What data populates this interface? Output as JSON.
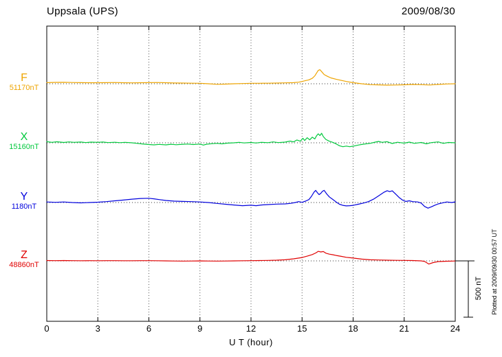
{
  "footer": {
    "plotted_at": "Plotted at 2009/09/30 00:57 UT"
  },
  "chart_data": {
    "type": "line",
    "title": "Uppsala (UPS)",
    "date": "2009/08/30",
    "xlabel": "U T (hour)",
    "x_range": [
      0,
      24
    ],
    "x_ticks": [
      0,
      3,
      6,
      9,
      12,
      15,
      18,
      21,
      24
    ],
    "y_unit": "nT",
    "points_note": "points are [UT hour, deviation in nT from base value]",
    "scale_bar": {
      "label": "500 nT",
      "nT": 500
    },
    "series": [
      {
        "name": "F",
        "base_value": "51170nT",
        "base_nT": 51170,
        "color": "#eea400",
        "points": [
          [
            0,
            10
          ],
          [
            0.5,
            12
          ],
          [
            1,
            13
          ],
          [
            1.5,
            11
          ],
          [
            2,
            10
          ],
          [
            2.5,
            9
          ],
          [
            3,
            9
          ],
          [
            3.5,
            10
          ],
          [
            4,
            11
          ],
          [
            4.5,
            9
          ],
          [
            5,
            8
          ],
          [
            5.5,
            9
          ],
          [
            6,
            10
          ],
          [
            6.5,
            11
          ],
          [
            7,
            9
          ],
          [
            7.5,
            7
          ],
          [
            8,
            6
          ],
          [
            8.5,
            5
          ],
          [
            9,
            4
          ],
          [
            9.5,
            0
          ],
          [
            10,
            -5
          ],
          [
            10.5,
            -3
          ],
          [
            11,
            0
          ],
          [
            11.5,
            2
          ],
          [
            12,
            4
          ],
          [
            12.5,
            4
          ],
          [
            13,
            5
          ],
          [
            13.5,
            6
          ],
          [
            14,
            8
          ],
          [
            14.5,
            10
          ],
          [
            14.8,
            14
          ],
          [
            15,
            20
          ],
          [
            15.2,
            28
          ],
          [
            15.4,
            35
          ],
          [
            15.6,
            48
          ],
          [
            15.75,
            70
          ],
          [
            15.85,
            95
          ],
          [
            15.95,
            118
          ],
          [
            16.05,
            125
          ],
          [
            16.15,
            108
          ],
          [
            16.3,
            82
          ],
          [
            16.5,
            65
          ],
          [
            16.7,
            52
          ],
          [
            17,
            40
          ],
          [
            17.3,
            30
          ],
          [
            17.6,
            20
          ],
          [
            18,
            10
          ],
          [
            18.5,
            0
          ],
          [
            19,
            -8
          ],
          [
            19.5,
            -10
          ],
          [
            20,
            -12
          ],
          [
            20.5,
            -11
          ],
          [
            21,
            -9
          ],
          [
            21.5,
            -6
          ],
          [
            22,
            -8
          ],
          [
            22.5,
            -11
          ],
          [
            23,
            -6
          ],
          [
            23.5,
            -2
          ],
          [
            24,
            0
          ]
        ]
      },
      {
        "name": "X",
        "base_value": "15160nT",
        "base_nT": 15160,
        "color": "#00c83c",
        "points": [
          [
            0,
            10
          ],
          [
            0.3,
            4
          ],
          [
            0.6,
            9
          ],
          [
            1,
            3
          ],
          [
            1.3,
            8
          ],
          [
            1.6,
            4
          ],
          [
            2,
            7
          ],
          [
            2.3,
            2
          ],
          [
            2.6,
            6
          ],
          [
            3,
            4
          ],
          [
            3.3,
            7
          ],
          [
            3.6,
            2
          ],
          [
            4,
            5
          ],
          [
            4.3,
            1
          ],
          [
            4.6,
            4
          ],
          [
            5,
            0
          ],
          [
            5.3,
            -5
          ],
          [
            5.6,
            -10
          ],
          [
            6,
            -15
          ],
          [
            6.3,
            -18
          ],
          [
            6.6,
            -14
          ],
          [
            7,
            -18
          ],
          [
            7.3,
            -13
          ],
          [
            7.6,
            -17
          ],
          [
            8,
            -13
          ],
          [
            8.3,
            -11
          ],
          [
            8.6,
            -15
          ],
          [
            9,
            -11
          ],
          [
            9.2,
            -20
          ],
          [
            9.4,
            -12
          ],
          [
            9.7,
            -8
          ],
          [
            10,
            -5
          ],
          [
            10.3,
            -9
          ],
          [
            10.6,
            -3
          ],
          [
            11,
            0
          ],
          [
            11.3,
            4
          ],
          [
            11.6,
            -1
          ],
          [
            12,
            3
          ],
          [
            12.3,
            -2
          ],
          [
            12.6,
            4
          ],
          [
            13,
            1
          ],
          [
            13.3,
            8
          ],
          [
            13.6,
            2
          ],
          [
            14,
            6
          ],
          [
            14.3,
            15
          ],
          [
            14.5,
            8
          ],
          [
            14.7,
            25
          ],
          [
            14.9,
            14
          ],
          [
            15.05,
            40
          ],
          [
            15.15,
            20
          ],
          [
            15.3,
            45
          ],
          [
            15.45,
            26
          ],
          [
            15.6,
            50
          ],
          [
            15.75,
            34
          ],
          [
            15.85,
            62
          ],
          [
            15.95,
            80
          ],
          [
            16.05,
            64
          ],
          [
            16.15,
            85
          ],
          [
            16.25,
            55
          ],
          [
            16.4,
            30
          ],
          [
            16.6,
            14
          ],
          [
            16.8,
            4
          ],
          [
            17,
            -10
          ],
          [
            17.2,
            -26
          ],
          [
            17.4,
            -35
          ],
          [
            17.6,
            -29
          ],
          [
            17.8,
            -35
          ],
          [
            18,
            -30
          ],
          [
            18.3,
            -20
          ],
          [
            18.6,
            -12
          ],
          [
            19,
            -5
          ],
          [
            19.3,
            6
          ],
          [
            19.5,
            12
          ],
          [
            19.7,
            4
          ],
          [
            20,
            10
          ],
          [
            20.3,
            -6
          ],
          [
            20.6,
            5
          ],
          [
            21,
            -3
          ],
          [
            21.3,
            6
          ],
          [
            21.6,
            -5
          ],
          [
            22,
            3
          ],
          [
            22.3,
            -9
          ],
          [
            22.6,
            2
          ],
          [
            23,
            8
          ],
          [
            23.3,
            -5
          ],
          [
            23.6,
            3
          ],
          [
            24,
            0
          ]
        ]
      },
      {
        "name": "Y",
        "base_value": "1180nT",
        "base_nT": 1180,
        "color": "#0000dd",
        "points": [
          [
            0,
            5
          ],
          [
            0.5,
            2
          ],
          [
            1,
            5
          ],
          [
            1.5,
            0
          ],
          [
            2,
            -3
          ],
          [
            2.5,
            0
          ],
          [
            3,
            3
          ],
          [
            3.5,
            8
          ],
          [
            4,
            15
          ],
          [
            4.5,
            22
          ],
          [
            5,
            30
          ],
          [
            5.5,
            36
          ],
          [
            6,
            38
          ],
          [
            6.3,
            33
          ],
          [
            6.6,
            26
          ],
          [
            7,
            18
          ],
          [
            7.5,
            12
          ],
          [
            8,
            10
          ],
          [
            8.5,
            8
          ],
          [
            9,
            5
          ],
          [
            9.5,
            0
          ],
          [
            10,
            -8
          ],
          [
            10.5,
            -15
          ],
          [
            11,
            -22
          ],
          [
            11.5,
            -28
          ],
          [
            12,
            -24
          ],
          [
            12.3,
            -28
          ],
          [
            12.6,
            -22
          ],
          [
            13,
            -18
          ],
          [
            13.5,
            -14
          ],
          [
            14,
            -12
          ],
          [
            14.3,
            -8
          ],
          [
            14.6,
            0
          ],
          [
            14.8,
            8
          ],
          [
            15,
            2
          ],
          [
            15.2,
            12
          ],
          [
            15.4,
            26
          ],
          [
            15.55,
            55
          ],
          [
            15.7,
            92
          ],
          [
            15.8,
            108
          ],
          [
            15.9,
            88
          ],
          [
            16,
            70
          ],
          [
            16.1,
            82
          ],
          [
            16.2,
            100
          ],
          [
            16.3,
            108
          ],
          [
            16.45,
            76
          ],
          [
            16.6,
            50
          ],
          [
            16.8,
            28
          ],
          [
            17,
            5
          ],
          [
            17.2,
            -15
          ],
          [
            17.4,
            -25
          ],
          [
            17.6,
            -30
          ],
          [
            17.8,
            -28
          ],
          [
            18,
            -25
          ],
          [
            18.3,
            -15
          ],
          [
            18.6,
            -5
          ],
          [
            18.9,
            8
          ],
          [
            19.2,
            30
          ],
          [
            19.5,
            60
          ],
          [
            19.8,
            90
          ],
          [
            20,
            105
          ],
          [
            20.15,
            97
          ],
          [
            20.3,
            104
          ],
          [
            20.5,
            75
          ],
          [
            20.7,
            45
          ],
          [
            20.9,
            22
          ],
          [
            21.1,
            10
          ],
          [
            21.3,
            15
          ],
          [
            21.5,
            8
          ],
          [
            21.8,
            5
          ],
          [
            22,
            -5
          ],
          [
            22.2,
            -35
          ],
          [
            22.4,
            -50
          ],
          [
            22.6,
            -38
          ],
          [
            22.8,
            -24
          ],
          [
            23,
            -12
          ],
          [
            23.2,
            -5
          ],
          [
            23.5,
            5
          ],
          [
            23.8,
            0
          ],
          [
            24,
            6
          ]
        ]
      },
      {
        "name": "Z",
        "base_value": "48860nT",
        "base_nT": 48860,
        "color": "#e00000",
        "points": [
          [
            0,
            3
          ],
          [
            0.5,
            2
          ],
          [
            1,
            3
          ],
          [
            1.5,
            2
          ],
          [
            2,
            1
          ],
          [
            2.5,
            2
          ],
          [
            3,
            1
          ],
          [
            3.5,
            2
          ],
          [
            4,
            2
          ],
          [
            4.5,
            1
          ],
          [
            5,
            1
          ],
          [
            5.5,
            2
          ],
          [
            6,
            2
          ],
          [
            6.5,
            1
          ],
          [
            7,
            0
          ],
          [
            7.5,
            -1
          ],
          [
            8,
            -2
          ],
          [
            8.5,
            -1
          ],
          [
            9,
            0
          ],
          [
            9.5,
            -1
          ],
          [
            10,
            -2
          ],
          [
            10.5,
            -1
          ],
          [
            11,
            0
          ],
          [
            11.5,
            1
          ],
          [
            12,
            2
          ],
          [
            12.5,
            3
          ],
          [
            13,
            4
          ],
          [
            13.5,
            6
          ],
          [
            14,
            10
          ],
          [
            14.5,
            18
          ],
          [
            15,
            30
          ],
          [
            15.3,
            42
          ],
          [
            15.6,
            56
          ],
          [
            15.8,
            70
          ],
          [
            15.95,
            85
          ],
          [
            16.1,
            79
          ],
          [
            16.25,
            83
          ],
          [
            16.4,
            68
          ],
          [
            16.6,
            60
          ],
          [
            16.8,
            55
          ],
          [
            17,
            48
          ],
          [
            17.3,
            40
          ],
          [
            17.6,
            32
          ],
          [
            18,
            25
          ],
          [
            18.5,
            16
          ],
          [
            19,
            10
          ],
          [
            19.5,
            8
          ],
          [
            20,
            6
          ],
          [
            20.5,
            5
          ],
          [
            21,
            4
          ],
          [
            21.5,
            3
          ],
          [
            22,
            0
          ],
          [
            22.2,
            -5
          ],
          [
            22.45,
            -28
          ],
          [
            22.7,
            -15
          ],
          [
            23,
            -6
          ],
          [
            23.5,
            -3
          ],
          [
            24,
            -1
          ]
        ]
      }
    ]
  }
}
